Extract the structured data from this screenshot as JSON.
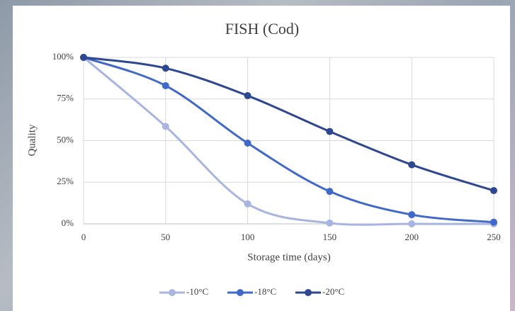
{
  "chart_data": {
    "type": "line",
    "title": "FISH (Cod)",
    "x_label": "Storage time (days)",
    "y_label": "Quality",
    "x": [
      0,
      50,
      100,
      150,
      200,
      250
    ],
    "xlim": [
      0,
      250
    ],
    "xticks": [
      0,
      50,
      100,
      150,
      200,
      250
    ],
    "ylim": [
      0,
      100
    ],
    "yticks": [
      {
        "value": 0,
        "label": "0%"
      },
      {
        "value": 25,
        "label": "25%"
      },
      {
        "value": 50,
        "label": "50%"
      },
      {
        "value": 75,
        "label": "75%"
      },
      {
        "value": 100,
        "label": "100%"
      }
    ],
    "grid": true,
    "legend": "bottom",
    "series": [
      {
        "name": "-10°C",
        "color": "#a8b5e0",
        "values": [
          100,
          58.5,
          12,
          0.5,
          0,
          0
        ]
      },
      {
        "name": "-18°C",
        "color": "#4169c8",
        "values": [
          100,
          83,
          48.5,
          19.5,
          5.5,
          1
        ]
      },
      {
        "name": "-20°C",
        "color": "#2d4890",
        "values": [
          100,
          93.5,
          77,
          55.5,
          35.5,
          20
        ]
      }
    ]
  }
}
